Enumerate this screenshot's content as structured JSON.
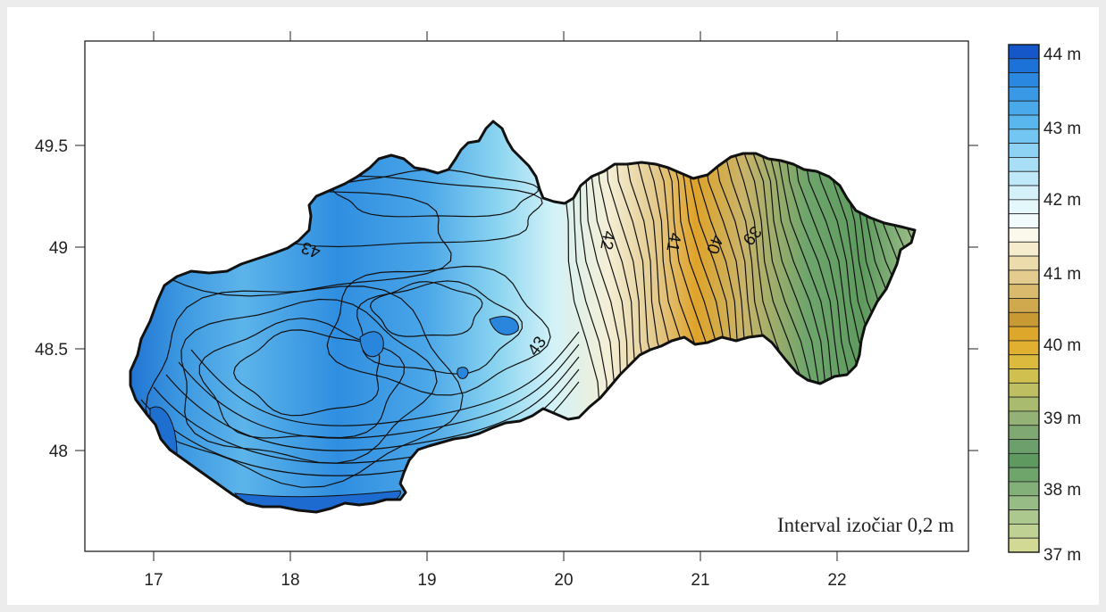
{
  "map": {
    "x_ticks": [
      "17",
      "18",
      "19",
      "20",
      "21",
      "22"
    ],
    "y_ticks": [
      "49.5",
      "49",
      "48.5",
      "48"
    ],
    "contour_labels": [
      {
        "id": "label-43-west",
        "text": "43"
      },
      {
        "id": "label-43-south",
        "text": "43"
      },
      {
        "id": "label-42",
        "text": "42"
      },
      {
        "id": "label-41",
        "text": "41"
      },
      {
        "id": "label-40",
        "text": "40"
      },
      {
        "id": "label-39",
        "text": "39"
      }
    ],
    "annotation": "Interval izočiar 0,2 m",
    "legend_labels": [
      "44 m",
      "43 m",
      "42 m",
      "41 m",
      "40 m",
      "39 m",
      "38 m",
      "37 m"
    ],
    "colors": {
      "high": "#1565c8",
      "mid_blue": "#55b2e8",
      "light_cyan": "#c8eef6",
      "neutral": "#f4f0dc",
      "tan": "#e6cc92",
      "orange": "#e2a624",
      "green": "#5f9a5f",
      "low": "#d8d690"
    }
  }
}
